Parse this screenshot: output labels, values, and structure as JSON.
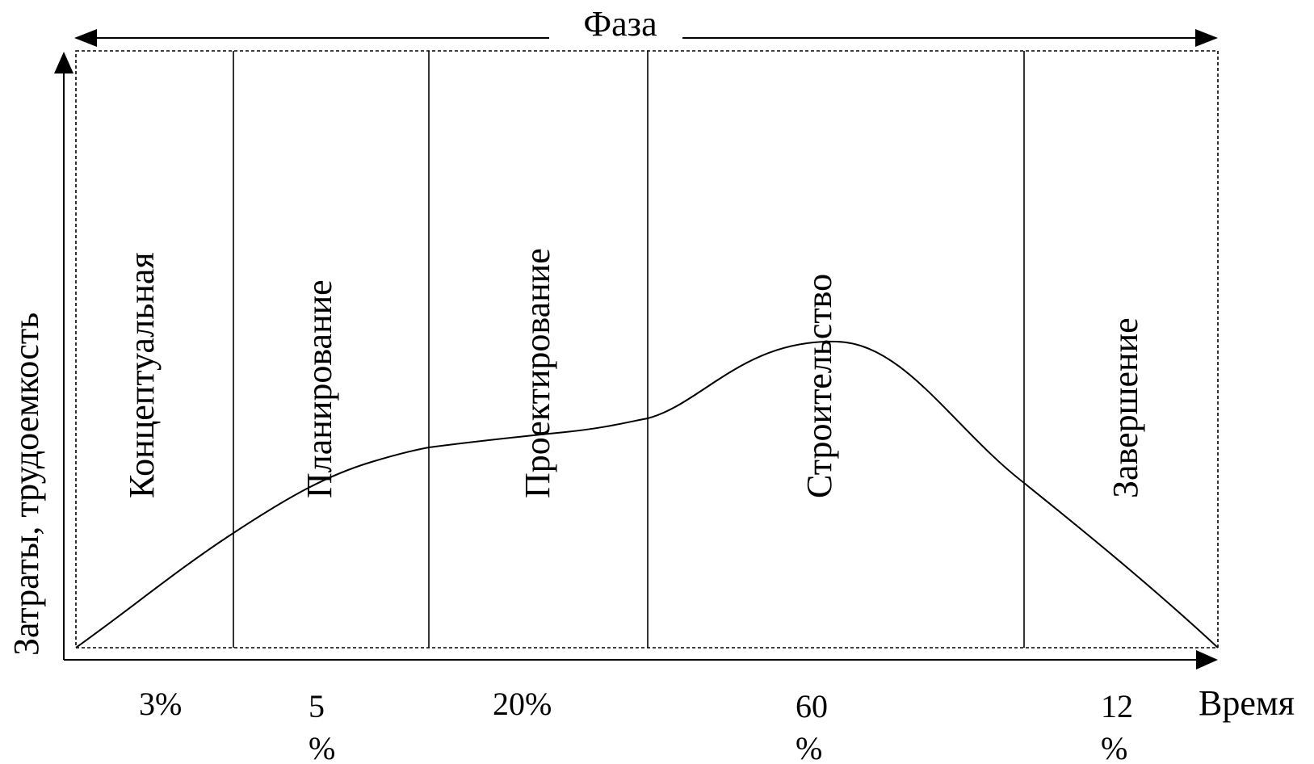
{
  "diagram": {
    "top_label": "Фаза",
    "y_axis_label": "Затраты, трудоемкость",
    "x_axis_label": "Время",
    "colors": {
      "line": "#000000",
      "background": "#ffffff"
    },
    "phases": [
      {
        "name": "Концептуальная",
        "share_line1": "3%",
        "share_line2": ""
      },
      {
        "name": "Планирование",
        "share_line1": "5",
        "share_line2": "%"
      },
      {
        "name": "Проектирование",
        "share_line1": "20%",
        "share_line2": ""
      },
      {
        "name": "Строительство",
        "share_line1": "60",
        "share_line2": "%"
      },
      {
        "name": "Завершение",
        "share_line1": "12",
        "share_line2": "%"
      }
    ]
  }
}
